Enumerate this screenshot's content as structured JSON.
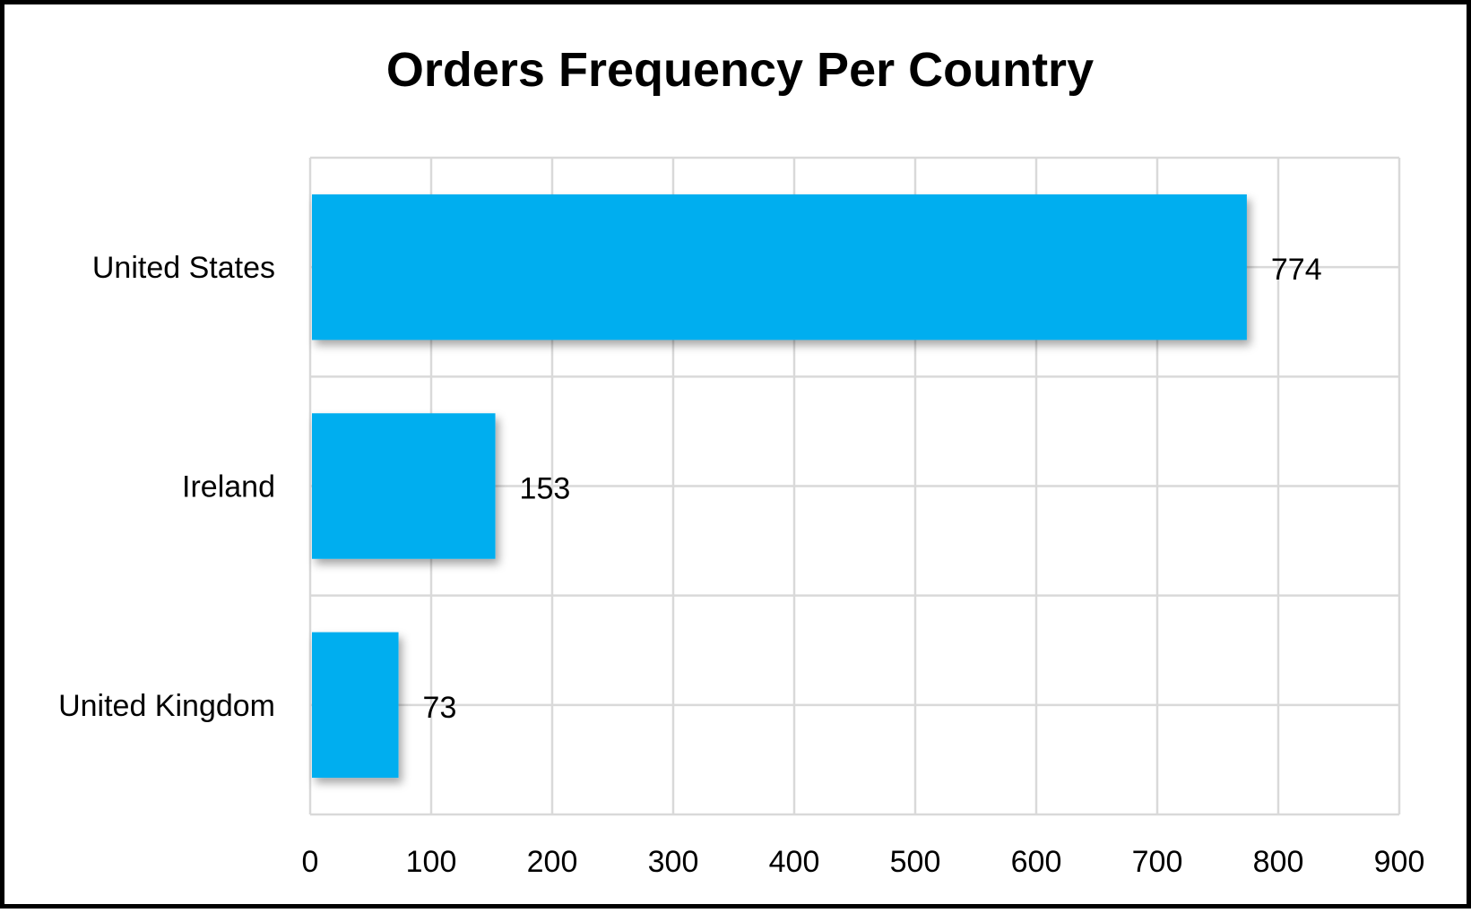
{
  "chart_data": {
    "type": "bar",
    "orientation": "horizontal",
    "title": "Orders Frequency Per Country",
    "xlabel": "",
    "ylabel": "",
    "categories": [
      "United States",
      "Ireland",
      "United Kingdom"
    ],
    "values": [
      774,
      153,
      73
    ],
    "data_labels": [
      "774",
      "153",
      "73"
    ],
    "xlim": [
      0,
      900
    ],
    "ticks": [
      0,
      100,
      200,
      300,
      400,
      500,
      600,
      700,
      800,
      900
    ],
    "tick_labels": [
      "0",
      "100",
      "200",
      "300",
      "400",
      "500",
      "600",
      "700",
      "800",
      "900"
    ],
    "grid": true,
    "legend": "none",
    "bar_color": "#00AEEF",
    "grid_color": "#D9D9D9"
  }
}
